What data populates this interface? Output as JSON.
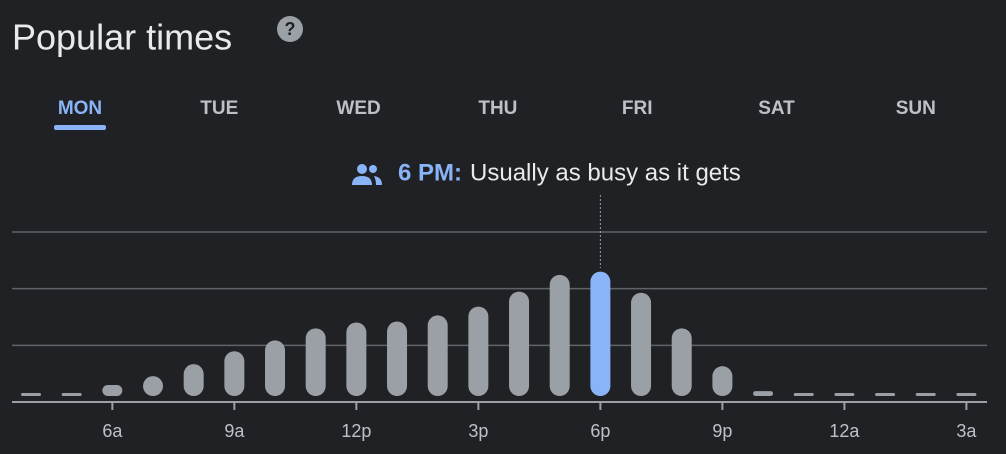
{
  "header": {
    "title": "Popular times",
    "help": "?"
  },
  "tabs": [
    "MON",
    "TUE",
    "WED",
    "THU",
    "FRI",
    "SAT",
    "SUN"
  ],
  "selected_tab": 0,
  "tooltip": {
    "time": "6 PM:",
    "text": "Usually as busy as it gets"
  },
  "chart_data": {
    "type": "bar",
    "categories": [
      null,
      null,
      "6a",
      null,
      null,
      "9a",
      null,
      null,
      "12p",
      null,
      null,
      "3p",
      null,
      null,
      "6p",
      null,
      null,
      "9p",
      null,
      null,
      "12a",
      null,
      null,
      "3a"
    ],
    "values": [
      0,
      0,
      7.5,
      11.4,
      16.7,
      22.4,
      27.2,
      32.5,
      35.1,
      35.5,
      38.2,
      42.1,
      48.7,
      56.1,
      57.5,
      48.2,
      32.5,
      15.8,
      4.8,
      0,
      0,
      0,
      0,
      0
    ],
    "color": "#9aa0a6",
    "highlight": 14,
    "highlight_color": "#8ab4f8",
    "ylim": [
      0,
      75
    ],
    "yticks": [
      0,
      25,
      50,
      75
    ],
    "grid": true
  }
}
